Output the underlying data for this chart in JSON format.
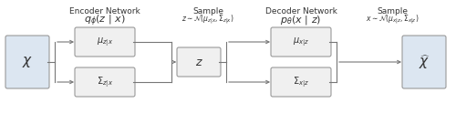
{
  "fig_width": 5.0,
  "fig_height": 1.36,
  "dpi": 100,
  "background_color": "#ffffff",
  "box_fill_blue": "#dce6f1",
  "box_fill_gray": "#f0f0f0",
  "box_edge_color": "#999999",
  "encoder_label": "Encoder Network",
  "encoder_sublabel": "$q_\\phi(z\\ |\\ x)$",
  "decoder_label": "Decoder Network",
  "decoder_sublabel": "$p_\\theta(x\\ |\\ z)$",
  "sample_label_1": "Sample",
  "sample_eq_1": "$z \\sim \\mathcal{N}(\\mu_{z|x}, \\Sigma_{z|x})$",
  "sample_label_2": "Sample",
  "sample_eq_2": "$x \\sim \\mathcal{N}(\\mu_{x|z}, \\Sigma_{x|z})$",
  "box_x_label": "$\\chi$",
  "box_xhat_label": "$\\widehat{\\chi}$",
  "box_mu_zx_label": "$\\mu_{z|x}$",
  "box_sigma_zx_label": "$\\Sigma_{z|x}$",
  "box_z_label": "$z$",
  "box_mu_xz_label": "$\\mu_{x|z}$",
  "box_sigma_xz_label": "$\\Sigma_{x|z}$",
  "line_color": "#777777",
  "text_color": "#333333"
}
